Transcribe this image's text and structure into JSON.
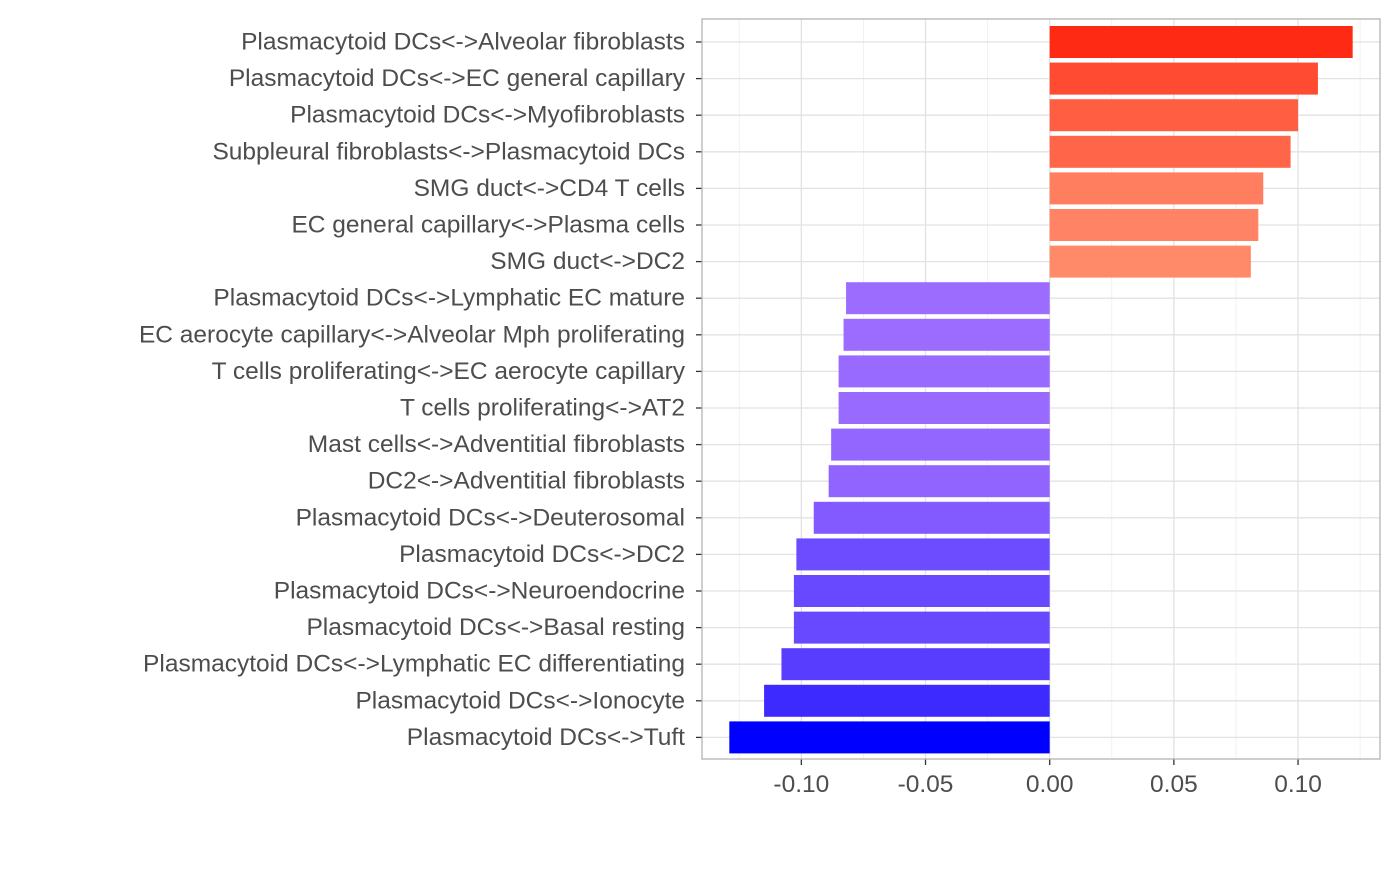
{
  "chart_data": {
    "type": "bar",
    "orientation": "horizontal",
    "title": "",
    "xlabel": "",
    "ylabel": "",
    "xlim": [
      -0.14,
      0.133
    ],
    "x_ticks": [
      -0.1,
      -0.05,
      0.0,
      0.05,
      0.1
    ],
    "x_tick_labels": [
      "-0.10",
      "-0.05",
      "0.00",
      "0.05",
      "0.10"
    ],
    "grid": true,
    "legend": "none",
    "color_scale": {
      "negative_strong": "#0000ff",
      "negative_weak": "#9c6cff",
      "positive_weak": "#ff8a6a",
      "positive_strong": "#ff2a14"
    },
    "categories": [
      "Plasmacytoid DCs<->Alveolar fibroblasts",
      "Plasmacytoid DCs<->EC general capillary",
      "Plasmacytoid DCs<->Myofibroblasts",
      "Subpleural fibroblasts<->Plasmacytoid DCs",
      "SMG duct<->CD4 T cells",
      "EC general capillary<->Plasma cells",
      "SMG duct<->DC2",
      "Plasmacytoid DCs<->Lymphatic EC mature",
      "EC aerocyte capillary<->Alveolar Mph proliferating",
      "T cells proliferating<->EC aerocyte capillary",
      "T cells proliferating<->AT2",
      "Mast cells<->Adventitial fibroblasts",
      "DC2<->Adventitial fibroblasts",
      "Plasmacytoid DCs<->Deuterosomal",
      "Plasmacytoid DCs<->DC2",
      "Plasmacytoid DCs<->Neuroendocrine",
      "Plasmacytoid DCs<->Basal resting",
      "Plasmacytoid DCs<->Lymphatic EC differentiating",
      "Plasmacytoid DCs<->Ionocyte",
      "Plasmacytoid DCs<->Tuft"
    ],
    "values": [
      0.122,
      0.108,
      0.1,
      0.097,
      0.086,
      0.084,
      0.081,
      -0.082,
      -0.083,
      -0.085,
      -0.085,
      -0.088,
      -0.089,
      -0.095,
      -0.102,
      -0.103,
      -0.103,
      -0.108,
      -0.115,
      -0.129
    ]
  }
}
